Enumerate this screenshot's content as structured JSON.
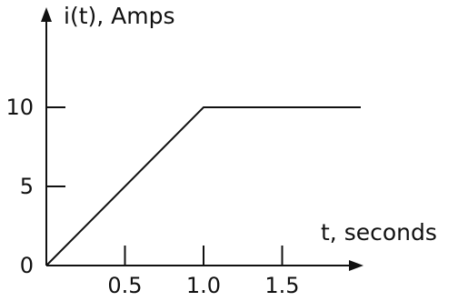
{
  "chart_data": {
    "type": "line",
    "xlabel": "t, seconds",
    "ylabel": "i(t), Amps",
    "xlim": [
      0,
      2.05
    ],
    "ylim": [
      0,
      15.5
    ],
    "xticks": [
      {
        "value": 0.5,
        "label": "0.5"
      },
      {
        "value": 1.0,
        "label": "1.0"
      },
      {
        "value": 1.5,
        "label": "1.5"
      }
    ],
    "yticks": [
      {
        "value": 0,
        "label": "0"
      },
      {
        "value": 5,
        "label": "5"
      },
      {
        "value": 10,
        "label": "10"
      }
    ],
    "series": [
      {
        "x": [
          0,
          1.0,
          2.0
        ],
        "y": [
          0,
          10,
          10
        ],
        "color": "#111111"
      }
    ],
    "grid": false,
    "legend": "none"
  }
}
